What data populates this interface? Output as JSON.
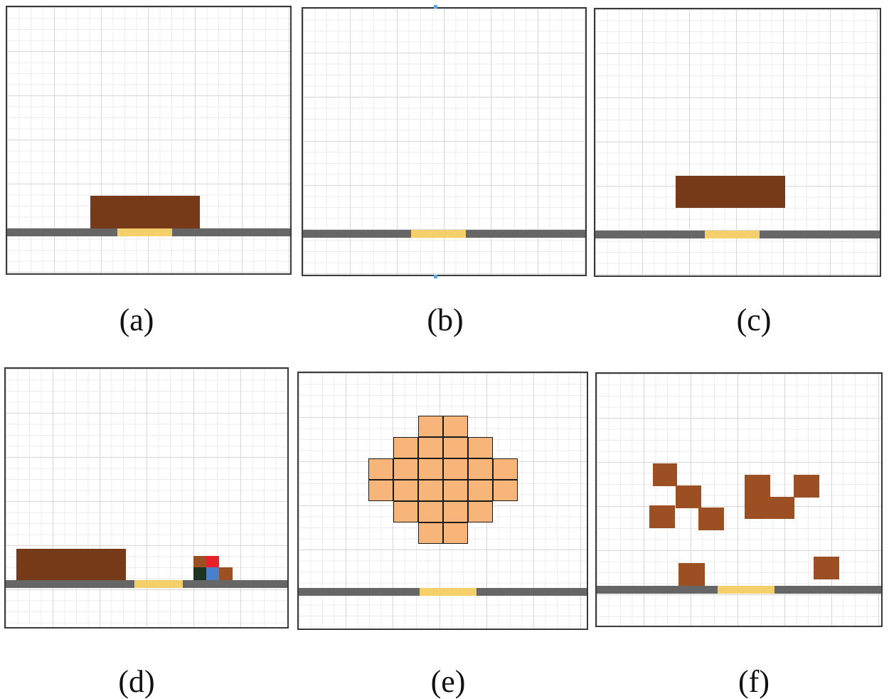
{
  "captions": {
    "a": "(a)",
    "b": "(b)",
    "c": "(c)",
    "d": "(d)",
    "e": "(e)",
    "f": "(f)"
  },
  "colors": {
    "ground": "#666666",
    "gap": "#f5cf6a",
    "platform_brown": "#763a18",
    "block_brown": "#9b4f22",
    "cluster_orange": "#f7b57a",
    "stack_red": "#e8202a",
    "stack_blue": "#4a7fc9",
    "stack_dark_green": "#1e3320",
    "grid_line": "#d6d6d6"
  }
}
